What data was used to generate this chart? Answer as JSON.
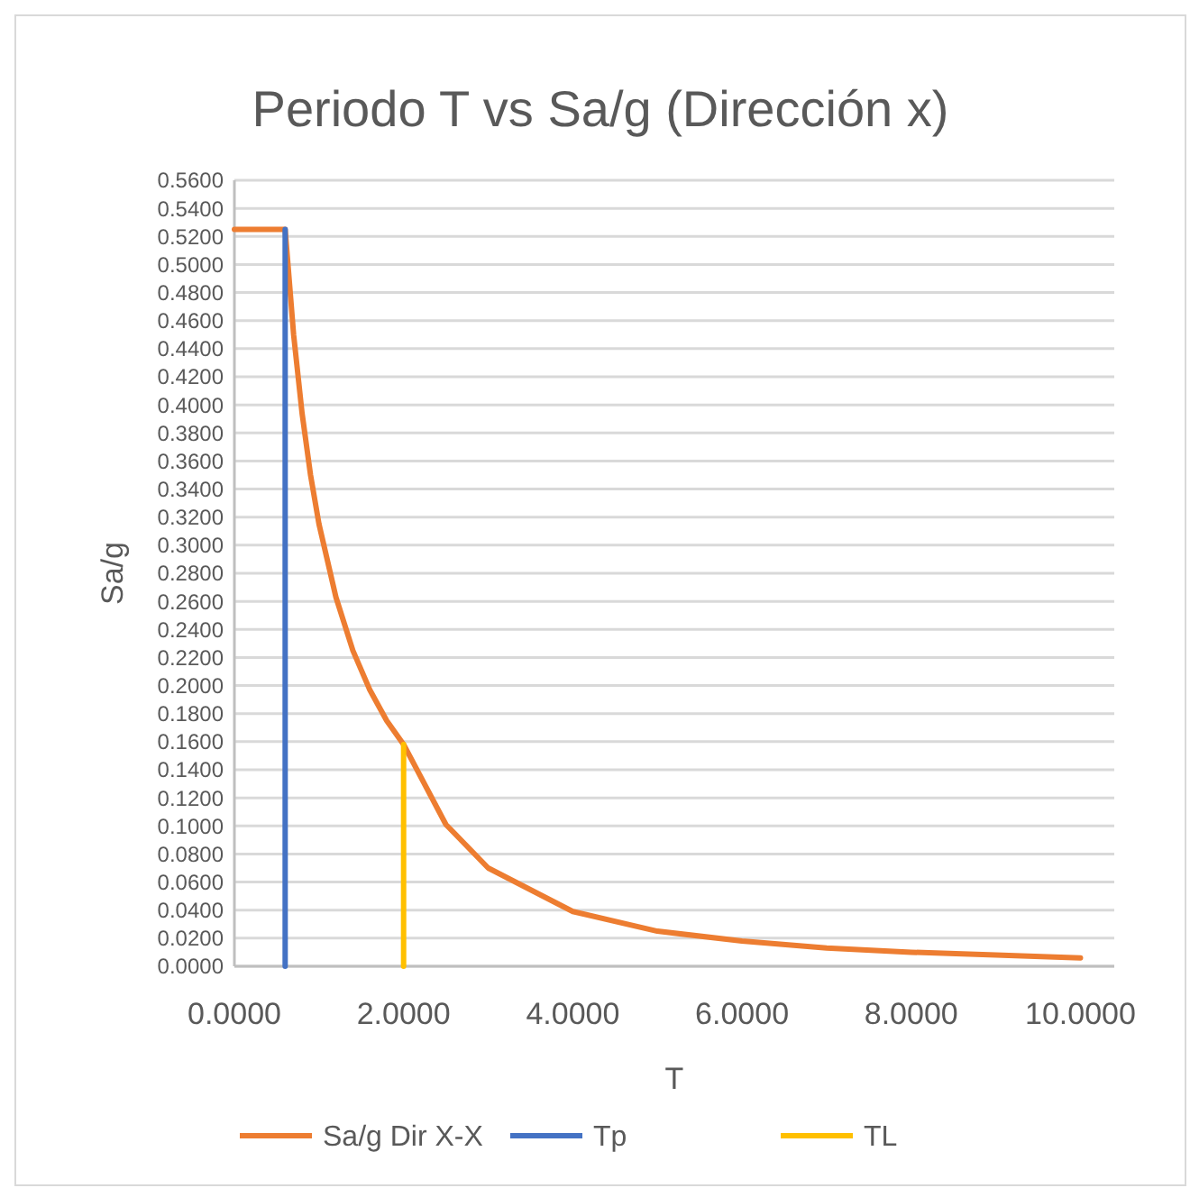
{
  "chart_data": {
    "type": "line",
    "title": "Periodo T vs Sa/g (Dirección x)",
    "xlabel": "T",
    "ylabel": "Sa/g",
    "xlim": [
      0,
      10.4
    ],
    "xticks": [
      {
        "value": 0,
        "label": "0.0000"
      },
      {
        "value": 2,
        "label": "2.0000"
      },
      {
        "value": 4,
        "label": "4.0000"
      },
      {
        "value": 6,
        "label": "6.0000"
      },
      {
        "value": 8,
        "label": "8.0000"
      },
      {
        "value": 10,
        "label": "10.0000"
      }
    ],
    "ylim": [
      0,
      0.56
    ],
    "yticks": [
      {
        "value": 0,
        "label": "0.0000"
      },
      {
        "value": 0.02,
        "label": "0.0200"
      },
      {
        "value": 0.04,
        "label": "0.0400"
      },
      {
        "value": 0.06,
        "label": "0.0600"
      },
      {
        "value": 0.08,
        "label": "0.0800"
      },
      {
        "value": 0.1,
        "label": "0.1000"
      },
      {
        "value": 0.12,
        "label": "0.1200"
      },
      {
        "value": 0.14,
        "label": "0.1400"
      },
      {
        "value": 0.16,
        "label": "0.1600"
      },
      {
        "value": 0.18,
        "label": "0.1800"
      },
      {
        "value": 0.2,
        "label": "0.2000"
      },
      {
        "value": 0.22,
        "label": "0.2200"
      },
      {
        "value": 0.24,
        "label": "0.2400"
      },
      {
        "value": 0.26,
        "label": "0.2600"
      },
      {
        "value": 0.28,
        "label": "0.2800"
      },
      {
        "value": 0.3,
        "label": "0.3000"
      },
      {
        "value": 0.32,
        "label": "0.3200"
      },
      {
        "value": 0.34,
        "label": "0.3400"
      },
      {
        "value": 0.36,
        "label": "0.3600"
      },
      {
        "value": 0.38,
        "label": "0.3800"
      },
      {
        "value": 0.4,
        "label": "0.4000"
      },
      {
        "value": 0.42,
        "label": "0.4200"
      },
      {
        "value": 0.44,
        "label": "0.4400"
      },
      {
        "value": 0.46,
        "label": "0.4600"
      },
      {
        "value": 0.48,
        "label": "0.4800"
      },
      {
        "value": 0.5,
        "label": "0.5000"
      },
      {
        "value": 0.52,
        "label": "0.5200"
      },
      {
        "value": 0.54,
        "label": "0.5400"
      },
      {
        "value": 0.56,
        "label": "0.5600"
      }
    ],
    "grid": "y",
    "legend": "bottom",
    "marker": "none",
    "line_style": "solid",
    "series": [
      {
        "name": "Sa/g  Dir X-X",
        "color": "#ed7d31",
        "x": [
          0,
          0.6,
          0.7,
          0.8,
          0.9,
          1.0,
          1.2,
          1.4,
          1.6,
          1.8,
          2.0,
          2.5,
          3,
          4,
          5,
          6,
          7,
          8,
          9,
          10
        ],
        "values": [
          0.525,
          0.525,
          0.45,
          0.394,
          0.35,
          0.315,
          0.263,
          0.225,
          0.197,
          0.175,
          0.158,
          0.101,
          0.07,
          0.039,
          0.025,
          0.018,
          0.013,
          0.01,
          0.008,
          0.006
        ]
      },
      {
        "name": "Tp",
        "color": "#4472c4",
        "x": [
          0.6,
          0.6
        ],
        "values": [
          0,
          0.525
        ]
      },
      {
        "name": "TL",
        "color": "#ffc000",
        "x": [
          2,
          2
        ],
        "values": [
          0,
          0.158
        ]
      }
    ]
  }
}
